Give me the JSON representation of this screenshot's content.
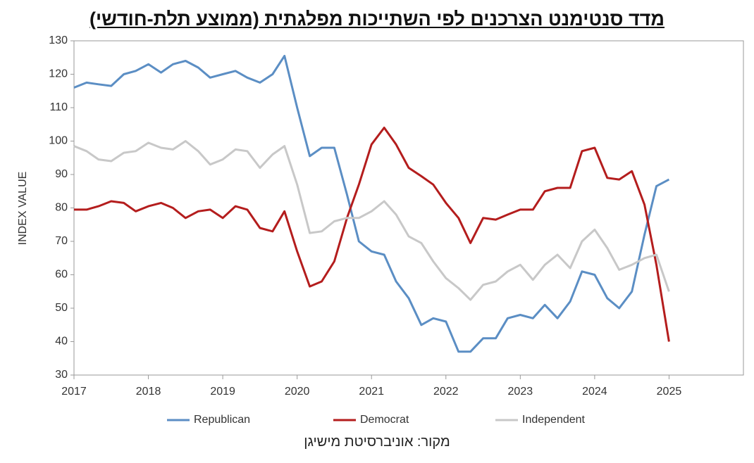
{
  "chart_data": {
    "type": "line",
    "title": "מדד סנטימנט הצרכנים לפי השתייכות מפלגתית (ממוצע תלת-חודשי)",
    "ylabel": "INDEX VALUE",
    "source": "מקור: אוניברסיטת מישיגן",
    "x": [
      2017,
      2017.17,
      2017.33,
      2017.5,
      2017.67,
      2017.83,
      2018,
      2018.17,
      2018.33,
      2018.5,
      2018.67,
      2018.83,
      2019,
      2019.17,
      2019.33,
      2019.5,
      2019.67,
      2019.83,
      2020,
      2020.17,
      2020.33,
      2020.5,
      2020.67,
      2020.83,
      2021,
      2021.17,
      2021.33,
      2021.5,
      2021.67,
      2021.83,
      2022,
      2022.17,
      2022.33,
      2022.5,
      2022.67,
      2022.83,
      2023,
      2023.17,
      2023.33,
      2023.5,
      2023.67,
      2023.83,
      2024,
      2024.17,
      2024.33,
      2024.5,
      2024.67,
      2024.83,
      2025
    ],
    "series": [
      {
        "name": "Republican",
        "color": "#5b8ec4",
        "values": [
          116,
          117.5,
          117,
          116.5,
          120,
          121,
          123,
          120.5,
          123,
          124,
          122,
          119,
          120,
          121,
          119,
          117.5,
          120,
          125.5,
          110,
          95.5,
          98,
          98,
          84,
          70,
          67,
          66,
          58,
          53,
          45,
          47,
          46,
          37,
          37,
          41,
          41,
          47,
          48,
          47,
          51,
          47,
          52,
          61,
          60,
          53,
          50,
          55,
          72,
          86.5,
          88.5
        ]
      },
      {
        "name": "Democrat",
        "color": "#b41d1d",
        "values": [
          79.5,
          79.5,
          80.5,
          82,
          81.5,
          79,
          80.5,
          81.5,
          80,
          77,
          79,
          79.5,
          77,
          80.5,
          79.5,
          74,
          73,
          79,
          67,
          56.5,
          58,
          64,
          77,
          87,
          99,
          104,
          99,
          92,
          89.5,
          87,
          81.5,
          77,
          69.5,
          77,
          76.5,
          78,
          79.5,
          79.5,
          85,
          86,
          86,
          97,
          98,
          89,
          88.5,
          91,
          81,
          63,
          40
        ]
      },
      {
        "name": "Independent",
        "color": "#c8c8c8",
        "values": [
          98.5,
          97,
          94.5,
          94,
          96.5,
          97,
          99.5,
          98,
          97.5,
          100,
          97,
          93,
          94.5,
          97.5,
          97,
          92,
          96,
          98.5,
          87,
          72.5,
          73,
          76,
          77,
          77,
          79,
          82,
          78,
          71.5,
          69.5,
          64,
          59,
          56,
          52.5,
          57,
          58,
          61,
          63,
          58.5,
          63,
          66,
          62,
          70,
          73.5,
          68,
          61.5,
          63,
          65,
          66,
          55
        ]
      }
    ],
    "xlim": [
      2017,
      2026
    ],
    "xticks": [
      2017,
      2018,
      2019,
      2020,
      2021,
      2022,
      2023,
      2024,
      2025
    ],
    "ylim": [
      30,
      130
    ],
    "yticks": [
      30,
      40,
      50,
      60,
      70,
      80,
      90,
      100,
      110,
      120,
      130
    ],
    "grid": false,
    "legend": "bottom"
  }
}
